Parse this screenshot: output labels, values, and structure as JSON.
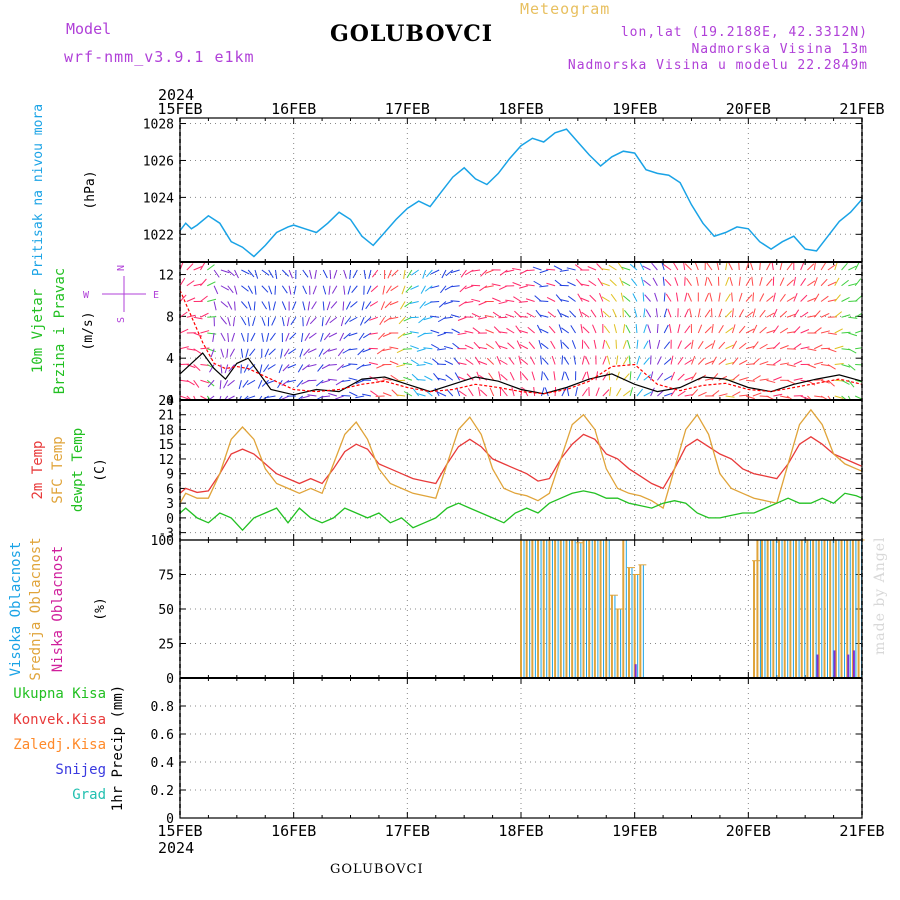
{
  "header": {
    "model_label": "Model",
    "model_name": "wrf-nmm_v3.9.1  e1km",
    "station": "GOLUBOVCI",
    "meteogram": "Meteogram",
    "lonlat": "lon,lat (19.2188E, 42.3312N)",
    "elevation": "Nadmorska Visina 13m",
    "model_elevation": "Nadmorska Visina u modelu 22.2849m"
  },
  "footer": {
    "station": "GOLUBOVCI",
    "credit": "made by Angel"
  },
  "time_axis": {
    "year": "2024",
    "labels": [
      "15FEB",
      "16FEB",
      "17FEB",
      "18FEB",
      "19FEB",
      "20FEB",
      "21FEB"
    ],
    "days": [
      0,
      1,
      2,
      3,
      4,
      5,
      6
    ]
  },
  "colors": {
    "pressure": "#1aa3e6",
    "wind_speed": "#000000",
    "gust": "#ff0000",
    "temp_2m": "#e83a3a",
    "temp_sfc": "#e0a43a",
    "dewpoint": "#22c022",
    "cloud_high": "#1aa3e6",
    "cloud_mid": "#e0a43a",
    "cloud_low": "#d0209c",
    "precip_total": "#22c022",
    "precip_conv": "#e83a3a",
    "precip_freezing": "#ff8a2a",
    "snow": "#3a3ae0",
    "hail": "#22c0b0",
    "wind_compass": "#b040d8"
  },
  "panels": {
    "pressure": {
      "label_color": "Pritisak na nivou mora",
      "unit": "(hPa)"
    },
    "wind": {
      "label1": "10m Vjetar",
      "label2": "Brzina i Pravac",
      "unit": "(m/s)",
      "compass": {
        "n": "N",
        "s": "S",
        "e": "E",
        "w": "W"
      }
    },
    "temp": {
      "label1": "2m Temp",
      "label2": "SFC Temp",
      "label3": "dewpt Temp",
      "unit": "(C)"
    },
    "cloud": {
      "label1": "Visoka Oblacnost",
      "label2": "Srednja Oblacnost",
      "label3": "Niska Oblacnost",
      "unit": "(%)"
    },
    "precip": {
      "legend": [
        "Ukupna Kisa",
        "Konvek.Kisa",
        "Zaledj.Kisa",
        "Snijeg",
        "Grad"
      ],
      "unit": "1hr Precip (mm)"
    }
  },
  "chart_data": [
    {
      "type": "line",
      "title": "Pritisak na nivou mora",
      "ylabel": "(hPa)",
      "ylim": [
        1020.5,
        1028.3
      ],
      "yticks": [
        1022,
        1024,
        1026,
        1028
      ],
      "series": [
        {
          "name": "Pritisak na nivou mora",
          "x": [
            0,
            0.05,
            0.1,
            0.15,
            0.25,
            0.35,
            0.45,
            0.55,
            0.65,
            0.75,
            0.85,
            0.95,
            1.0,
            1.1,
            1.2,
            1.3,
            1.4,
            1.5,
            1.6,
            1.7,
            1.8,
            1.9,
            2.0,
            2.1,
            2.2,
            2.3,
            2.4,
            2.5,
            2.6,
            2.7,
            2.8,
            2.9,
            3.0,
            3.1,
            3.2,
            3.3,
            3.4,
            3.5,
            3.6,
            3.7,
            3.8,
            3.9,
            4.0,
            4.1,
            4.2,
            4.3,
            4.4,
            4.5,
            4.6,
            4.7,
            4.8,
            4.9,
            5.0,
            5.1,
            5.2,
            5.3,
            5.4,
            5.5,
            5.6,
            5.7,
            5.8,
            5.9,
            6.0
          ],
          "y": [
            1022.2,
            1022.6,
            1022.3,
            1022.5,
            1023.0,
            1022.6,
            1021.6,
            1021.3,
            1020.8,
            1021.4,
            1022.1,
            1022.4,
            1022.5,
            1022.3,
            1022.1,
            1022.6,
            1023.2,
            1022.8,
            1021.9,
            1021.4,
            1022.1,
            1022.8,
            1023.4,
            1023.8,
            1023.5,
            1024.3,
            1025.1,
            1025.6,
            1025.0,
            1024.7,
            1025.3,
            1026.1,
            1026.8,
            1027.2,
            1027.0,
            1027.5,
            1027.7,
            1027.0,
            1026.3,
            1025.7,
            1026.2,
            1026.5,
            1026.4,
            1025.5,
            1025.3,
            1025.2,
            1024.8,
            1023.6,
            1022.6,
            1021.9,
            1022.1,
            1022.4,
            1022.3,
            1021.6,
            1021.2,
            1021.6,
            1021.9,
            1021.2,
            1021.1,
            1021.9,
            1022.7,
            1023.2,
            1023.9
          ]
        }
      ]
    },
    {
      "type": "line",
      "title": "10m Vjetar Brzina i Pravac",
      "ylabel": "(m/s)",
      "ylim": [
        0,
        13.2
      ],
      "yticks": [
        0,
        4,
        8,
        12
      ],
      "series": [
        {
          "name": "speed",
          "x": [
            0,
            0.1,
            0.2,
            0.3,
            0.4,
            0.5,
            0.6,
            0.7,
            0.8,
            1.0,
            1.2,
            1.4,
            1.6,
            1.8,
            2.0,
            2.2,
            2.4,
            2.6,
            2.8,
            3.0,
            3.2,
            3.4,
            3.6,
            3.8,
            4.0,
            4.2,
            4.4,
            4.6,
            4.8,
            5.0,
            5.2,
            5.4,
            5.6,
            5.8,
            6.0
          ],
          "y": [
            2.5,
            3.5,
            4.5,
            3.0,
            2.0,
            3.5,
            4.0,
            2.5,
            1.0,
            0.5,
            1.0,
            0.8,
            2.0,
            2.2,
            1.5,
            0.8,
            1.5,
            2.2,
            1.8,
            1.0,
            0.6,
            1.2,
            2.0,
            2.5,
            1.5,
            0.8,
            1.2,
            2.2,
            2.0,
            1.2,
            0.8,
            1.5,
            2.0,
            2.4,
            1.8
          ]
        },
        {
          "name": "gust",
          "x": [
            0,
            0.1,
            0.2,
            0.3,
            0.4,
            0.5,
            0.6,
            0.8,
            1.0,
            1.2,
            1.4,
            1.6,
            1.8,
            2.0,
            2.2,
            2.4,
            2.6,
            2.8,
            3.0,
            3.2,
            3.4,
            3.6,
            3.8,
            4.0,
            4.2,
            4.4,
            4.6,
            4.8,
            5.0,
            5.2,
            5.4,
            5.6,
            5.8,
            6.0
          ],
          "y": [
            10.5,
            8.0,
            5.5,
            3.5,
            3.0,
            3.2,
            3.0,
            2.0,
            1.0,
            0.8,
            1.0,
            1.5,
            1.8,
            1.2,
            0.8,
            1.0,
            1.5,
            1.2,
            0.8,
            0.6,
            1.0,
            1.8,
            3.2,
            3.4,
            1.5,
            0.9,
            1.4,
            1.6,
            1.0,
            0.8,
            1.2,
            1.6,
            2.0,
            1.5
          ]
        }
      ]
    },
    {
      "type": "line",
      "title": "2m Temp / SFC Temp / dewpt Temp",
      "ylabel": "(C)",
      "ylim": [
        -4.5,
        24
      ],
      "yticks": [
        -3,
        0,
        3,
        6,
        9,
        12,
        15,
        18,
        21,
        24
      ],
      "series": [
        {
          "name": "2m Temp",
          "x": [
            0,
            0.05,
            0.15,
            0.25,
            0.35,
            0.45,
            0.55,
            0.65,
            0.75,
            0.85,
            0.95,
            1.05,
            1.15,
            1.25,
            1.35,
            1.45,
            1.55,
            1.65,
            1.75,
            1.85,
            1.95,
            2.05,
            2.15,
            2.25,
            2.35,
            2.45,
            2.55,
            2.65,
            2.75,
            2.85,
            2.95,
            3.05,
            3.15,
            3.25,
            3.35,
            3.45,
            3.55,
            3.65,
            3.75,
            3.85,
            3.95,
            4.05,
            4.15,
            4.25,
            4.35,
            4.45,
            4.55,
            4.65,
            4.75,
            4.85,
            4.95,
            5.05,
            5.15,
            5.25,
            5.35,
            5.45,
            5.55,
            5.65,
            5.75,
            5.85,
            5.95,
            6.0
          ],
          "y": [
            5,
            6,
            5.2,
            5.5,
            9,
            13,
            14,
            13,
            11,
            9,
            8,
            7,
            8,
            7,
            10,
            13.5,
            15,
            14,
            11,
            10,
            9,
            8,
            7.5,
            7,
            11,
            14.5,
            16,
            14.5,
            12,
            11,
            10,
            9,
            7.5,
            8,
            12,
            15,
            17,
            16,
            13,
            12,
            10,
            8.5,
            7,
            6,
            10,
            14.5,
            16,
            14.5,
            13,
            12,
            10,
            9,
            8.5,
            8,
            11,
            15,
            16.5,
            15,
            13,
            12,
            11,
            10.5
          ]
        },
        {
          "name": "SFC Temp",
          "x": [
            0,
            0.05,
            0.15,
            0.25,
            0.35,
            0.45,
            0.55,
            0.65,
            0.75,
            0.85,
            0.95,
            1.05,
            1.15,
            1.25,
            1.35,
            1.45,
            1.55,
            1.65,
            1.75,
            1.85,
            1.95,
            2.05,
            2.15,
            2.25,
            2.35,
            2.45,
            2.55,
            2.65,
            2.75,
            2.85,
            2.95,
            3.05,
            3.15,
            3.25,
            3.35,
            3.45,
            3.55,
            3.65,
            3.75,
            3.85,
            3.95,
            4.05,
            4.15,
            4.25,
            4.35,
            4.45,
            4.55,
            4.65,
            4.75,
            4.85,
            4.95,
            5.05,
            5.15,
            5.25,
            5.35,
            5.45,
            5.55,
            5.65,
            5.75,
            5.85,
            5.95,
            6.0
          ],
          "y": [
            3,
            5,
            4,
            4,
            9,
            16,
            18.5,
            16,
            10,
            7,
            6,
            5,
            6,
            5,
            11,
            17,
            19.5,
            16,
            10,
            7,
            6,
            5,
            4.5,
            4,
            11,
            18,
            20.5,
            17,
            10,
            6,
            5,
            4.5,
            3.5,
            5,
            12,
            19,
            21,
            18,
            10,
            6,
            5,
            4.5,
            3.5,
            2,
            10,
            18,
            21,
            17,
            9,
            6,
            5,
            4,
            3.5,
            3,
            11,
            19,
            22,
            19,
            13,
            11,
            10,
            9.5
          ]
        },
        {
          "name": "dewpt Temp",
          "x": [
            0,
            0.05,
            0.15,
            0.25,
            0.35,
            0.45,
            0.55,
            0.65,
            0.75,
            0.85,
            0.95,
            1.05,
            1.15,
            1.25,
            1.35,
            1.45,
            1.55,
            1.65,
            1.75,
            1.85,
            1.95,
            2.05,
            2.15,
            2.25,
            2.35,
            2.45,
            2.55,
            2.65,
            2.75,
            2.85,
            2.95,
            3.05,
            3.15,
            3.25,
            3.35,
            3.45,
            3.55,
            3.65,
            3.75,
            3.85,
            3.95,
            4.05,
            4.15,
            4.25,
            4.35,
            4.45,
            4.55,
            4.65,
            4.75,
            4.85,
            4.95,
            5.05,
            5.15,
            5.25,
            5.35,
            5.45,
            5.55,
            5.65,
            5.75,
            5.85,
            5.95,
            6.0
          ],
          "y": [
            1,
            2,
            0,
            -1,
            1,
            0,
            -2.5,
            0,
            1,
            2,
            -1,
            2,
            0,
            -1,
            0,
            2,
            1,
            0,
            1,
            -1,
            0,
            -2,
            -1,
            0,
            2,
            3,
            2,
            1,
            0,
            -1,
            1,
            2,
            1,
            3,
            4,
            5,
            5.5,
            5,
            4,
            4,
            3,
            2.5,
            2,
            3,
            3.5,
            3,
            1,
            0,
            0,
            0.5,
            1,
            1,
            2,
            3,
            4,
            3,
            3,
            4,
            3,
            5,
            4.5,
            4
          ]
        }
      ]
    },
    {
      "type": "bar",
      "title": "Visoka / Srednja / Niska Oblacnost",
      "ylabel": "(%)",
      "ylim": [
        0,
        100
      ],
      "yticks": [
        0,
        25,
        50,
        75,
        100
      ],
      "series": [
        {
          "name": "Visoka Oblacnost",
          "days_start": [
            3.0
          ],
          "days_end": [
            3.0
          ],
          "value": 100
        },
        {
          "name": "Srednja Oblacnost",
          "bars": [
            [
              3.0,
              100
            ],
            [
              3.05,
              100
            ],
            [
              3.1,
              100
            ],
            [
              3.15,
              100
            ],
            [
              3.2,
              100
            ],
            [
              3.25,
              100
            ],
            [
              3.3,
              100
            ],
            [
              3.35,
              100
            ],
            [
              3.4,
              100
            ],
            [
              3.45,
              100
            ],
            [
              3.5,
              98
            ],
            [
              3.55,
              100
            ],
            [
              3.6,
              100
            ],
            [
              3.65,
              100
            ],
            [
              3.7,
              100
            ],
            [
              3.75,
              100
            ],
            [
              3.8,
              60
            ],
            [
              3.85,
              50
            ],
            [
              3.9,
              100
            ],
            [
              3.95,
              80
            ],
            [
              4.0,
              75
            ],
            [
              4.05,
              82
            ],
            [
              5.05,
              85
            ],
            [
              5.08,
              100
            ],
            [
              5.12,
              100
            ],
            [
              5.17,
              100
            ],
            [
              5.22,
              100
            ],
            [
              5.27,
              100
            ],
            [
              5.32,
              100
            ],
            [
              5.37,
              100
            ],
            [
              5.42,
              100
            ],
            [
              5.47,
              100
            ],
            [
              5.52,
              100
            ],
            [
              5.57,
              100
            ],
            [
              5.62,
              100
            ],
            [
              5.67,
              100
            ],
            [
              5.72,
              100
            ],
            [
              5.77,
              100
            ],
            [
              5.82,
              100
            ],
            [
              5.87,
              100
            ],
            [
              5.92,
              100
            ],
            [
              5.97,
              100
            ]
          ]
        },
        {
          "name": "Niska Oblacnost",
          "bars": [
            [
              4.0,
              10
            ],
            [
              5.6,
              17
            ],
            [
              5.75,
              20
            ],
            [
              5.87,
              17
            ],
            [
              5.92,
              20
            ]
          ]
        }
      ]
    },
    {
      "type": "bar",
      "title": "1hr Precip",
      "ylabel": "1hr Precip (mm)",
      "ylim": [
        0,
        1.0
      ],
      "yticks": [
        0,
        0.2,
        0.4,
        0.6,
        0.8
      ],
      "series": [
        {
          "name": "Ukupna Kisa",
          "values": []
        },
        {
          "name": "Konvek.Kisa",
          "values": []
        },
        {
          "name": "Zaledj.Kisa",
          "values": []
        },
        {
          "name": "Snijeg",
          "values": []
        },
        {
          "name": "Grad",
          "values": []
        }
      ]
    }
  ]
}
